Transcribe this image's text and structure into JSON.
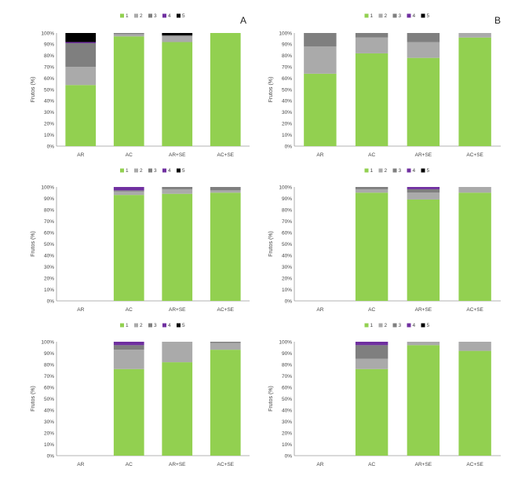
{
  "legend_colors": [
    "#92d050",
    "#aaaaaa",
    "#7f7f7f",
    "#7030a0",
    "#000000"
  ],
  "chart_data": [
    {
      "type": "bar",
      "stacked": true,
      "panel_label": "A",
      "ylabel": "Frutos (%)",
      "ylim": [
        0,
        100
      ],
      "yticks": [
        "0%",
        "10%",
        "20%",
        "30%",
        "40%",
        "50%",
        "60%",
        "70%",
        "80%",
        "90%",
        "100%"
      ],
      "categories": [
        "AR",
        "AC",
        "AR+SE",
        "AC+SE"
      ],
      "series": [
        {
          "name": "1",
          "values": [
            54,
            97,
            92,
            100
          ]
        },
        {
          "name": "2",
          "values": [
            16,
            2,
            5,
            0
          ]
        },
        {
          "name": "3",
          "values": [
            21,
            1,
            1,
            0
          ]
        },
        {
          "name": "4",
          "values": [
            1,
            0,
            0,
            0
          ]
        },
        {
          "name": "5",
          "values": [
            8,
            0,
            2,
            0
          ]
        }
      ]
    },
    {
      "type": "bar",
      "stacked": true,
      "panel_label": "B",
      "ylabel": "Frutos (%)",
      "ylim": [
        0,
        100
      ],
      "yticks": [
        "0%",
        "10%",
        "20%",
        "30%",
        "40%",
        "50%",
        "60%",
        "70%",
        "80%",
        "90%",
        "100%"
      ],
      "categories": [
        "AR",
        "AC",
        "AR+SE",
        "AC+SE"
      ],
      "series": [
        {
          "name": "1",
          "values": [
            64,
            82,
            78,
            96
          ]
        },
        {
          "name": "2",
          "values": [
            24,
            14,
            14,
            4
          ]
        },
        {
          "name": "3",
          "values": [
            12,
            4,
            8,
            0
          ]
        },
        {
          "name": "4",
          "values": [
            0,
            0,
            0,
            0
          ]
        },
        {
          "name": "5",
          "values": [
            0,
            0,
            0,
            0
          ]
        }
      ]
    },
    {
      "type": "bar",
      "stacked": true,
      "panel_label": "",
      "ylabel": "Frutos (%)",
      "ylim": [
        0,
        100
      ],
      "yticks": [
        "0%",
        "10%",
        "20%",
        "30%",
        "40%",
        "50%",
        "60%",
        "70%",
        "80%",
        "90%",
        "100%"
      ],
      "categories": [
        "AR",
        "AC",
        "AR+SE",
        "AC+SE"
      ],
      "series": [
        {
          "name": "1",
          "values": [
            0,
            93,
            94,
            95
          ]
        },
        {
          "name": "2",
          "values": [
            0,
            3,
            4,
            2
          ]
        },
        {
          "name": "3",
          "values": [
            0,
            1,
            2,
            3
          ]
        },
        {
          "name": "4",
          "values": [
            0,
            3,
            0,
            0
          ]
        },
        {
          "name": "5",
          "values": [
            0,
            0,
            0,
            0
          ]
        }
      ]
    },
    {
      "type": "bar",
      "stacked": true,
      "panel_label": "",
      "ylabel": "Frutos (%)",
      "ylim": [
        0,
        100
      ],
      "yticks": [
        "0%",
        "10%",
        "20%",
        "30%",
        "40%",
        "50%",
        "60%",
        "70%",
        "80%",
        "90%",
        "100%"
      ],
      "categories": [
        "AR",
        "AC",
        "AR+SE",
        "AC+SE"
      ],
      "series": [
        {
          "name": "1",
          "values": [
            0,
            95,
            89,
            95
          ]
        },
        {
          "name": "2",
          "values": [
            0,
            3,
            6,
            5
          ]
        },
        {
          "name": "3",
          "values": [
            0,
            2,
            3,
            0
          ]
        },
        {
          "name": "4",
          "values": [
            0,
            0,
            2,
            0
          ]
        },
        {
          "name": "5",
          "values": [
            0,
            0,
            0,
            0
          ]
        }
      ]
    },
    {
      "type": "bar",
      "stacked": true,
      "panel_label": "",
      "ylabel": "Frutos (%)",
      "ylim": [
        0,
        100
      ],
      "yticks": [
        "0%",
        "10%",
        "20%",
        "30%",
        "40%",
        "50%",
        "60%",
        "70%",
        "80%",
        "90%",
        "100%"
      ],
      "categories": [
        "AR",
        "AC",
        "AR+SE",
        "AC+SE"
      ],
      "series": [
        {
          "name": "1",
          "values": [
            0,
            76,
            82,
            93
          ]
        },
        {
          "name": "2",
          "values": [
            0,
            17,
            18,
            6
          ]
        },
        {
          "name": "3",
          "values": [
            0,
            4,
            0,
            1
          ]
        },
        {
          "name": "4",
          "values": [
            0,
            3,
            0,
            0
          ]
        },
        {
          "name": "5",
          "values": [
            0,
            0,
            0,
            0
          ]
        }
      ]
    },
    {
      "type": "bar",
      "stacked": true,
      "panel_label": "",
      "ylabel": "Frutos (%)",
      "ylim": [
        0,
        100
      ],
      "yticks": [
        "0%",
        "10%",
        "20%",
        "30%",
        "40%",
        "50%",
        "60%",
        "70%",
        "80%",
        "90%",
        "100%"
      ],
      "categories": [
        "AR",
        "AC",
        "AR+SE",
        "AC+SE"
      ],
      "series": [
        {
          "name": "1",
          "values": [
            0,
            76,
            97,
            92
          ]
        },
        {
          "name": "2",
          "values": [
            0,
            9,
            3,
            8
          ]
        },
        {
          "name": "3",
          "values": [
            0,
            12,
            0,
            0
          ]
        },
        {
          "name": "4",
          "values": [
            0,
            3,
            0,
            0
          ]
        },
        {
          "name": "5",
          "values": [
            0,
            0,
            0,
            0
          ]
        }
      ]
    }
  ]
}
